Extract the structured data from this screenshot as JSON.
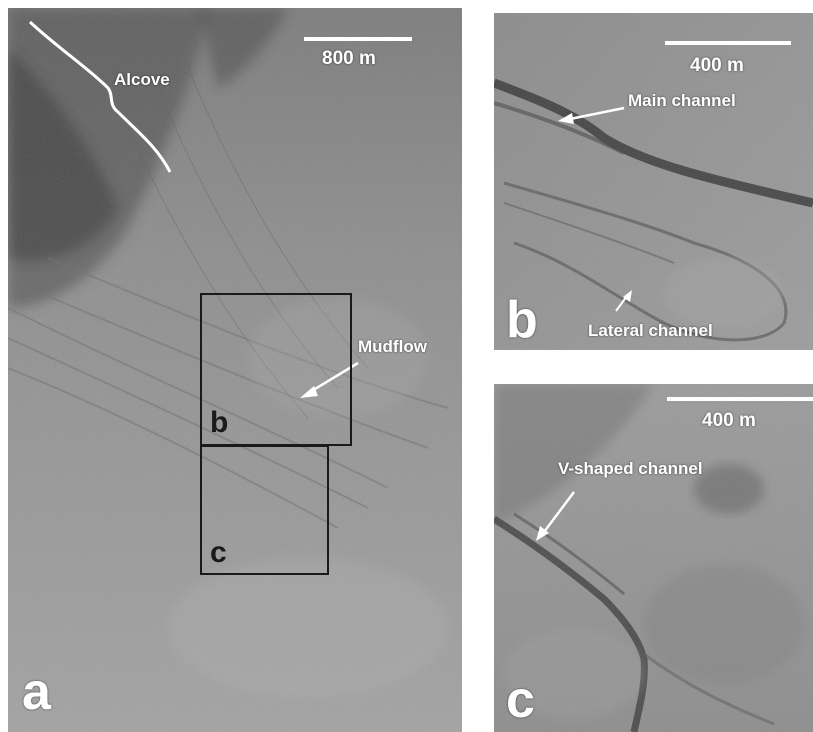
{
  "panel_a": {
    "letter": "a",
    "alcove_label": "Alcove",
    "scale_label": "800 m",
    "mudflow_label": "Mudflow",
    "inset_b_label": "b",
    "inset_c_label": "c"
  },
  "panel_b": {
    "letter": "b",
    "scale_label": "400 m",
    "main_channel_label": "Main channel",
    "lateral_channel_label": "Lateral channel"
  },
  "panel_c": {
    "letter": "c",
    "scale_label": "400 m",
    "v_channel_label": "V-shaped channel"
  }
}
